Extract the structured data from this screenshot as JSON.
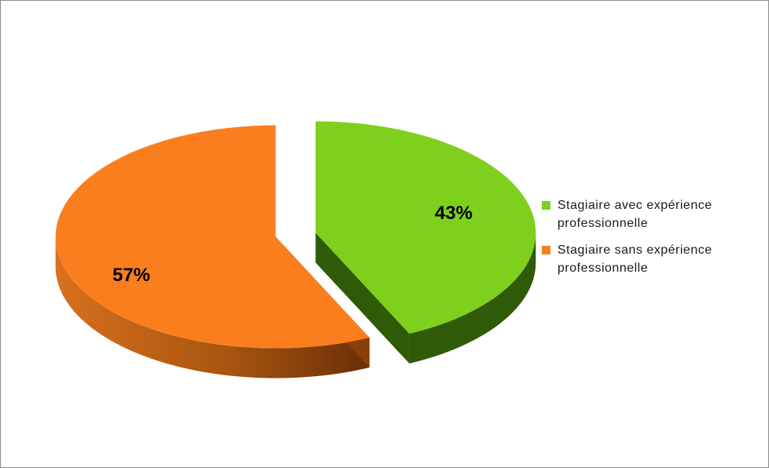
{
  "chart_data": {
    "type": "pie",
    "three_d": true,
    "exploded": true,
    "slices": [
      {
        "label": "Stagiaire avec expérience professionnelle",
        "value": 43,
        "display": "43%",
        "color": "#7fcf1d",
        "side_color": "#2f5a08"
      },
      {
        "label": "Stagiaire sans expérience professionnelle",
        "value": 57,
        "display": "57%",
        "color": "#fa7e1e",
        "side_color": "#b4520e"
      }
    ],
    "legend_position": "right"
  }
}
